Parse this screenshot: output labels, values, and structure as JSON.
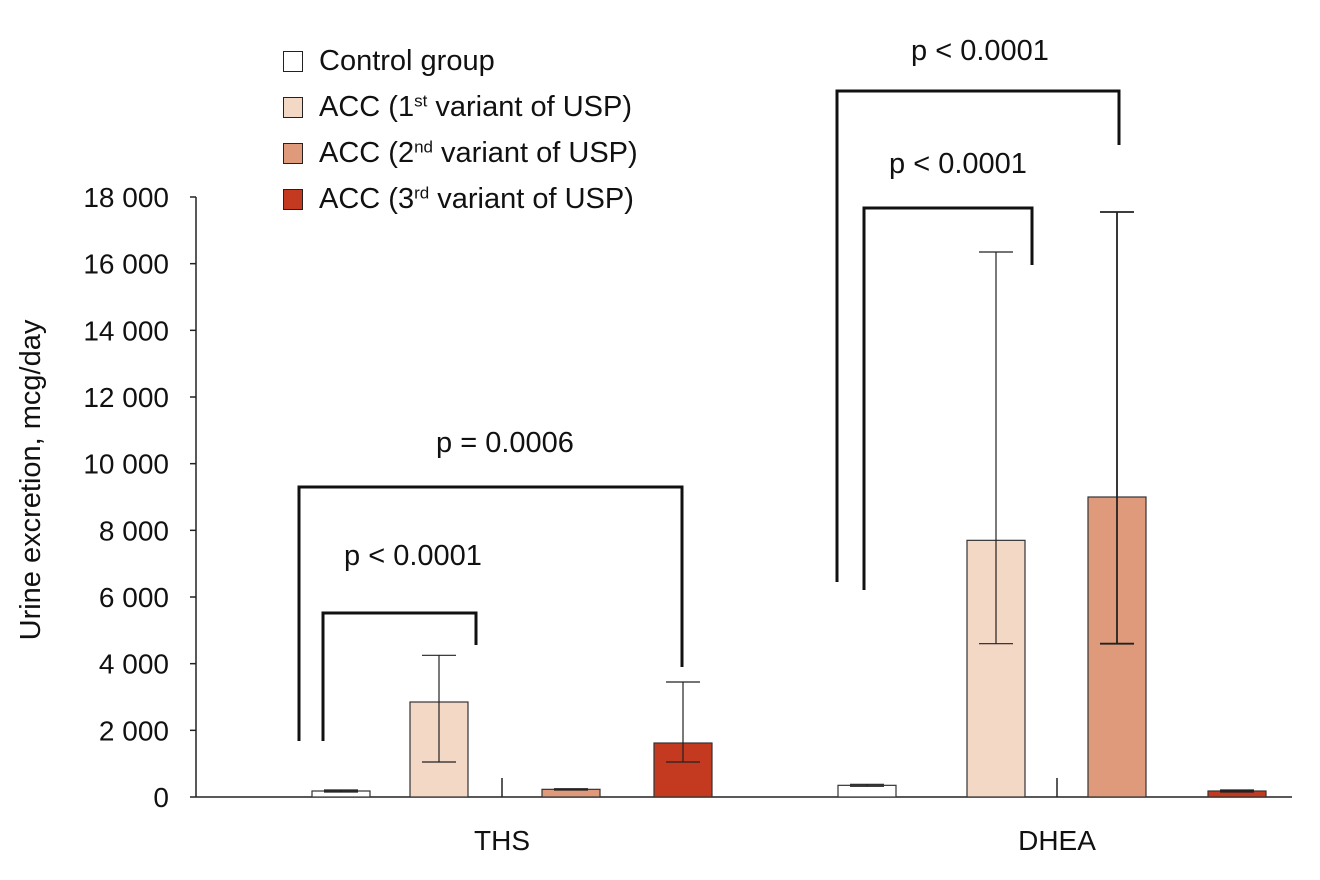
{
  "chart_data": {
    "type": "bar",
    "title": "",
    "xlabel": "",
    "ylabel": "Urine excretion, mcg/day",
    "ylim": [
      0,
      18000
    ],
    "yticks": [
      0,
      2000,
      4000,
      6000,
      8000,
      10000,
      12000,
      14000,
      16000,
      18000
    ],
    "ytick_labels": [
      "0",
      "2 000",
      "4 000",
      "6 000",
      "8 000",
      "10 000",
      "12 000",
      "14 000",
      "16 000",
      "18 000"
    ],
    "categories": [
      "THS",
      "DHEA"
    ],
    "legend_position": "top-left",
    "series": [
      {
        "name": "Control group",
        "name_parts": [
          "Control group",
          "",
          ""
        ],
        "color": "#ffffff",
        "values": [
          180,
          350
        ],
        "err_low": [
          150,
          320
        ],
        "err_high": [
          210,
          380
        ]
      },
      {
        "name": "ACC (1st variant of USP)",
        "name_parts": [
          "ACC (1",
          "st",
          " variant of USP)"
        ],
        "color": "#f4d8c6",
        "values": [
          2850,
          7700
        ],
        "err_low": [
          1050,
          4600
        ],
        "err_high": [
          4250,
          16350
        ]
      },
      {
        "name": "ACC (2nd variant of USP)",
        "name_parts": [
          "ACC (2",
          "nd",
          " variant of USP)"
        ],
        "color": "#de9a7b",
        "values": [
          230,
          9000
        ],
        "err_low": [
          210,
          4600
        ],
        "err_high": [
          250,
          17550
        ]
      },
      {
        "name": "ACC (3rd variant of USP)",
        "name_parts": [
          "ACC (3",
          "rd",
          " variant of USP)"
        ],
        "color": "#c43a20",
        "values": [
          1620,
          180
        ],
        "err_low": [
          1050,
          160
        ],
        "err_high": [
          3450,
          200
        ]
      }
    ],
    "annotations": [
      {
        "text": "p < 0.0001",
        "category": "THS",
        "from_series": 0,
        "to_series": 1
      },
      {
        "text": "p = 0.0006",
        "category": "THS",
        "from_series": 0,
        "to_series": 3
      },
      {
        "text": "p < 0.0001",
        "category": "DHEA",
        "from_series": 0,
        "to_series": 1
      },
      {
        "text": "p < 0.0001",
        "category": "DHEA",
        "from_series": 0,
        "to_series": 2
      }
    ]
  }
}
